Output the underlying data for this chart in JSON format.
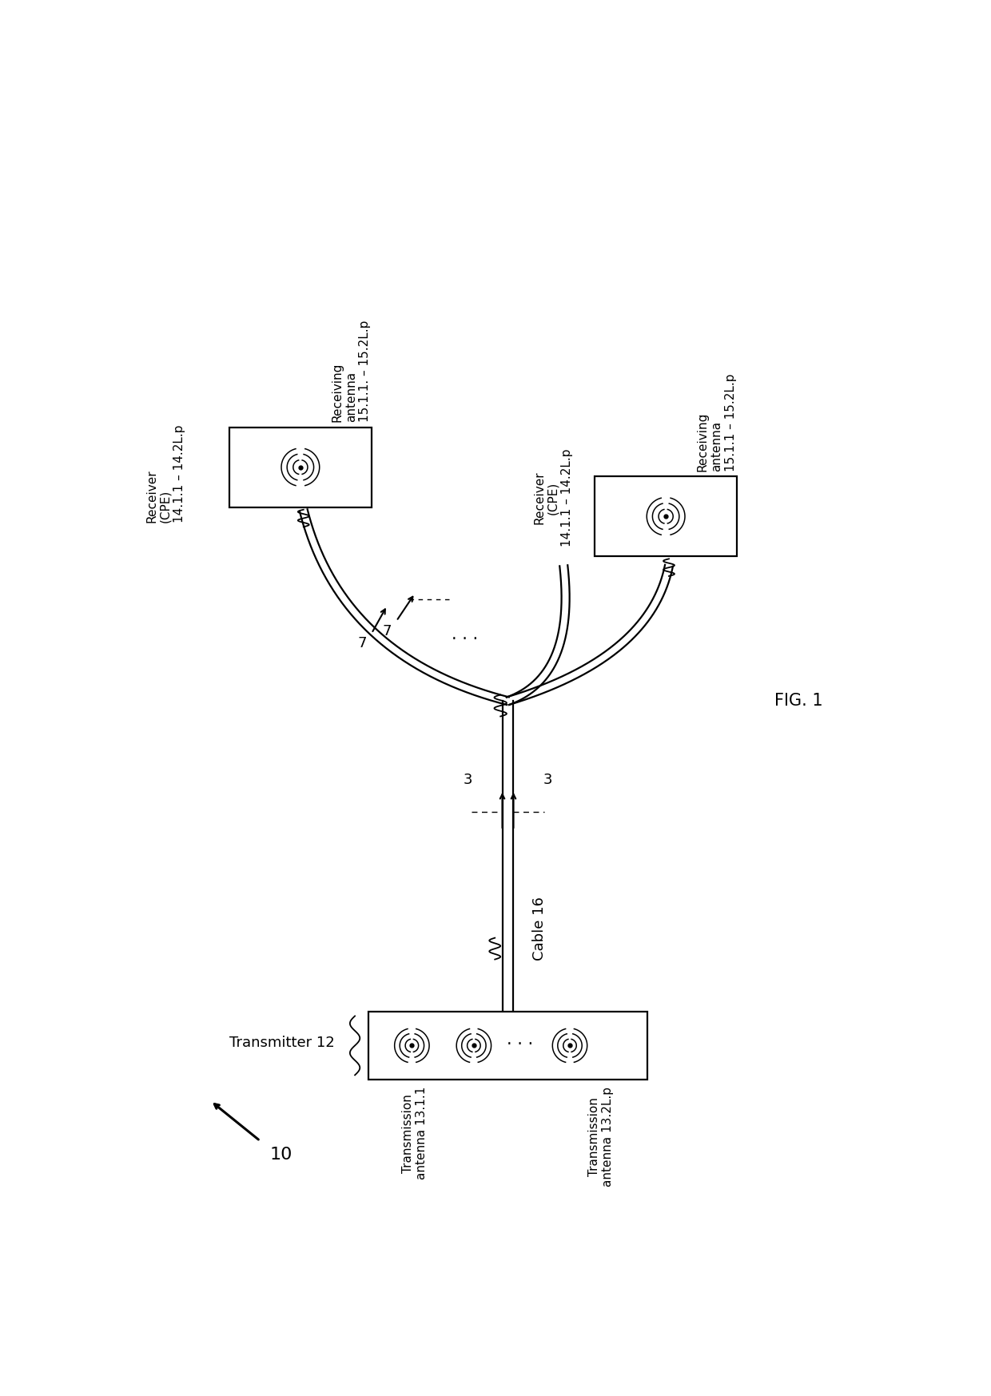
{
  "bg_color": "#ffffff",
  "fig_label": "FIG. 1",
  "system_label": "10",
  "transmitter_label": "Transmitter 12",
  "cable_label": "Cable 16",
  "wire_label": "3",
  "left_rcvr_label": "Receiver\n(CPE)\n14.1.1 – 14.2L.p",
  "left_ant_label": "Receiving\nantenna\n15.1.1. – 15.2L.p",
  "right_rcvr_label": "Receiver\n(CPE)\n14.1.1 – 14.2L.p",
  "right_ant_label": "Receiving\nantenna\n15.1.1 – 15.2L.p",
  "wire_arrow_label": "7",
  "tx_ant1_label": "Transmission\nantenna 13.1.1",
  "tx_ant2_label": "Transmission\nantenna 13.2L.p",
  "font_size": 13,
  "font_size_sm": 11,
  "font_family": "DejaVu Sans"
}
